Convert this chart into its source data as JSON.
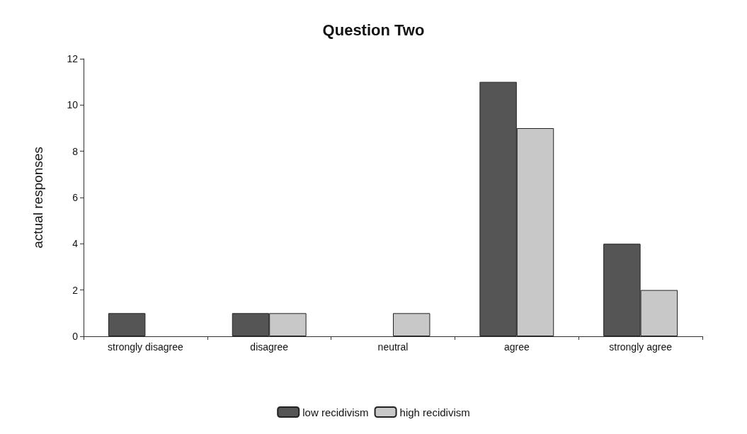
{
  "chart_data": {
    "type": "bar",
    "title": "Question Two",
    "ylabel": "actual responses",
    "categories": [
      "strongly disagree",
      "disagree",
      "neutral",
      "agree",
      "strongly agree"
    ],
    "series": [
      {
        "name": "low recidivism",
        "color": "#555555",
        "values": [
          1,
          1,
          0,
          11,
          4
        ]
      },
      {
        "name": "high recidivism",
        "color": "#c8c8c8",
        "values": [
          0,
          1,
          1,
          9,
          2
        ]
      }
    ],
    "ylim": [
      0,
      12
    ],
    "yticks": [
      0,
      2,
      4,
      6,
      8,
      10,
      12
    ],
    "grid": false,
    "legend": "bottom"
  }
}
